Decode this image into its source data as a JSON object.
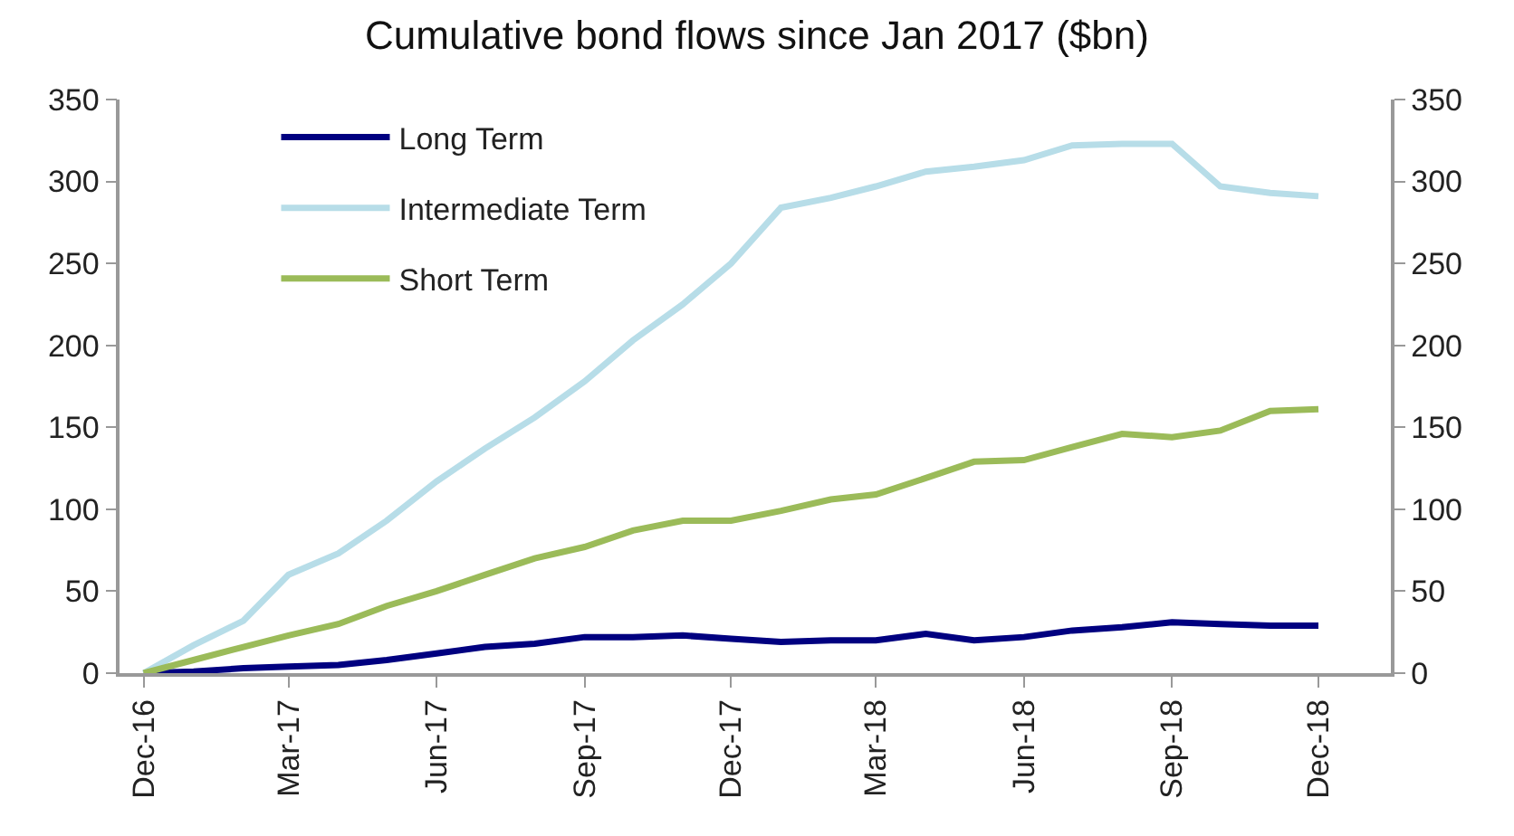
{
  "chart_data": {
    "type": "line",
    "title": "Cumulative bond flows since Jan 2017 ($bn)",
    "x": [
      "2016-12",
      "2017-01",
      "2017-02",
      "2017-03",
      "2017-04",
      "2017-05",
      "2017-06",
      "2017-07",
      "2017-08",
      "2017-09",
      "2017-10",
      "2017-11",
      "2017-12",
      "2018-01",
      "2018-02",
      "2018-03",
      "2018-04",
      "2018-05",
      "2018-06",
      "2018-07",
      "2018-08",
      "2018-09",
      "2018-10",
      "2018-11",
      "2018-12"
    ],
    "series": [
      {
        "name": "Long Term",
        "color": "#000080",
        "values": [
          0,
          1,
          3,
          4,
          5,
          8,
          12,
          16,
          18,
          22,
          22,
          23,
          21,
          19,
          20,
          20,
          24,
          20,
          22,
          26,
          28,
          31,
          30,
          29,
          29
        ]
      },
      {
        "name": "Intermediate Term",
        "color": "#b7dde8",
        "values": [
          0,
          17,
          32,
          60,
          73,
          93,
          117,
          137,
          156,
          178,
          203,
          225,
          250,
          284,
          290,
          297,
          306,
          309,
          313,
          322,
          323,
          323,
          297,
          293,
          291
        ]
      },
      {
        "name": "Short Term",
        "color": "#9bbb59",
        "values": [
          0,
          8,
          16,
          23,
          30,
          41,
          50,
          60,
          70,
          77,
          87,
          93,
          93,
          99,
          106,
          109,
          119,
          129,
          130,
          138,
          146,
          144,
          148,
          160,
          161
        ]
      }
    ],
    "xlim": [
      "2016-11-16",
      "2019-01-15"
    ],
    "xticks": [
      {
        "value": "2016-12",
        "label": "Dec-16"
      },
      {
        "value": "2017-03",
        "label": "Mar-17"
      },
      {
        "value": "2017-06",
        "label": "Jun-17"
      },
      {
        "value": "2017-09",
        "label": "Sep-17"
      },
      {
        "value": "2017-12",
        "label": "Dec-17"
      },
      {
        "value": "2018-03",
        "label": "Mar-18"
      },
      {
        "value": "2018-06",
        "label": "Jun-18"
      },
      {
        "value": "2018-09",
        "label": "Sep-18"
      },
      {
        "value": "2018-12",
        "label": "Dec-18"
      }
    ],
    "ylim": [
      0,
      350
    ],
    "yticks": [
      0,
      50,
      100,
      150,
      200,
      250,
      300,
      350
    ],
    "y2lim": [
      0,
      350
    ],
    "y2ticks": [
      0,
      50,
      100,
      150,
      200,
      250,
      300,
      350
    ],
    "legend": "top left",
    "marker": "none",
    "line_style": "solid"
  }
}
